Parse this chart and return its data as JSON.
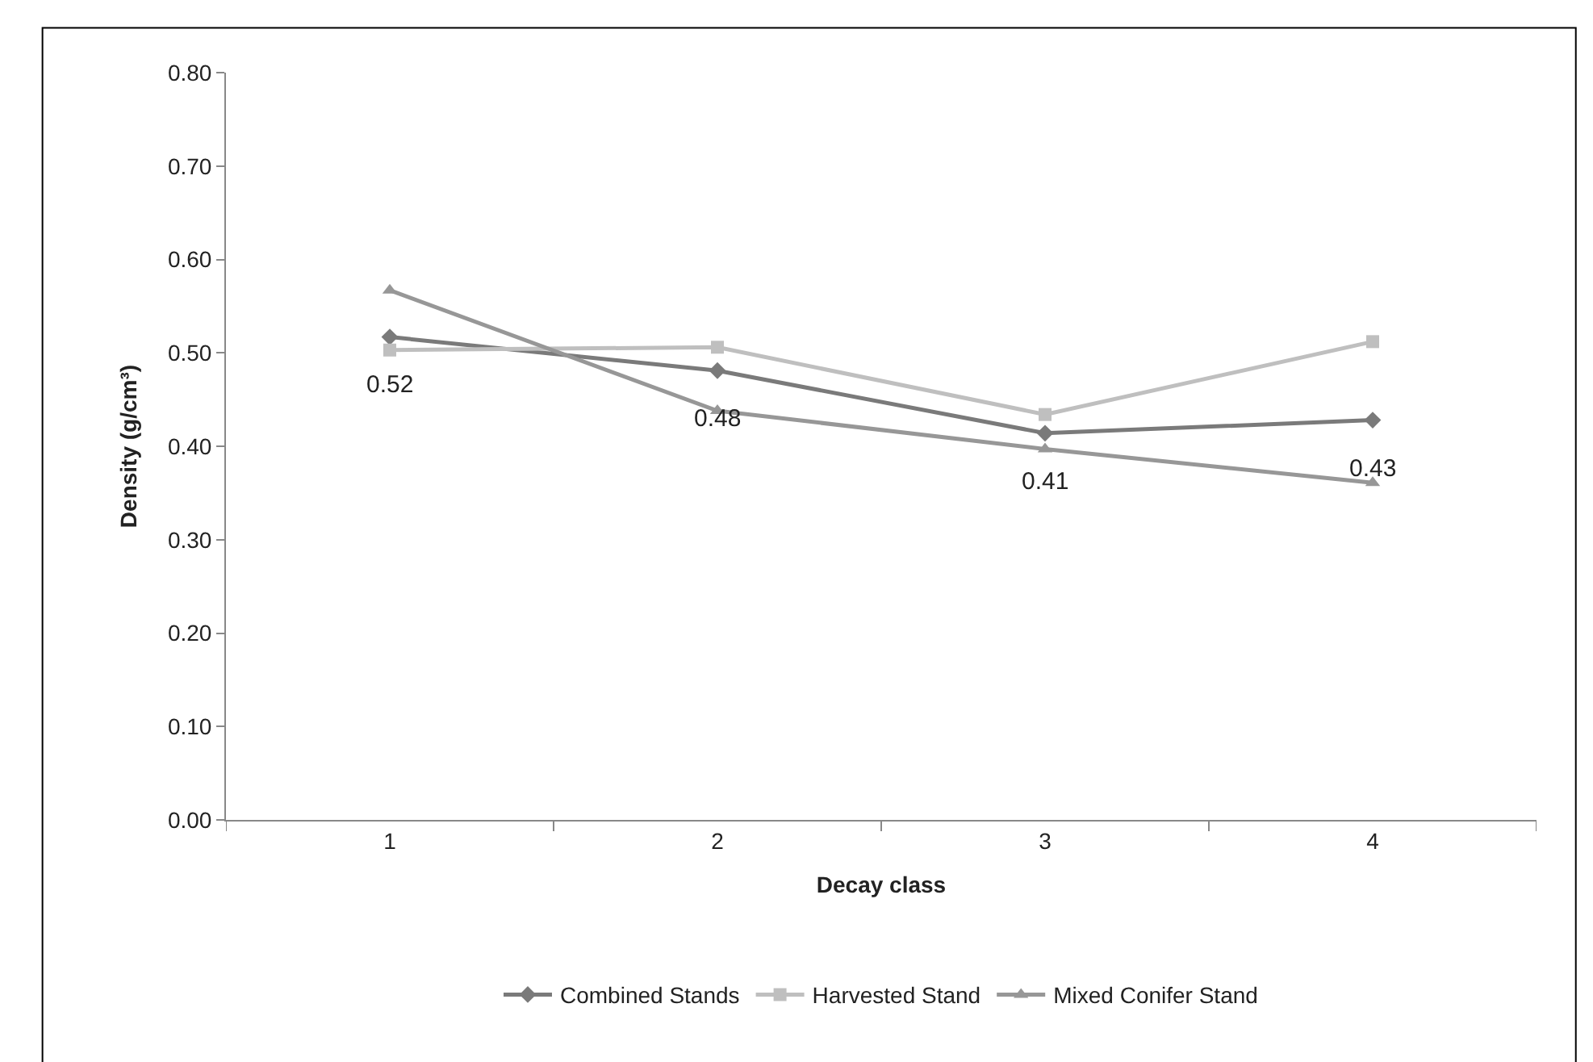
{
  "chart_data": {
    "type": "line",
    "xlabel": "Decay class",
    "ylabel": "Density (g/cm³)",
    "categories": [
      "1",
      "2",
      "3",
      "4"
    ],
    "series": [
      {
        "name": "Combined Stands",
        "color": "#7a7a7a",
        "marker": "diamond",
        "values": [
          0.517,
          0.481,
          0.414,
          0.428
        ],
        "value_labels": [
          "0.52",
          "0.48",
          "0.41",
          "0.43"
        ]
      },
      {
        "name": "Harvested Stand",
        "color": "#bfbfbf",
        "marker": "square",
        "values": [
          0.503,
          0.506,
          0.434,
          0.512
        ]
      },
      {
        "name": "Mixed Conifer Stand",
        "color": "#979797",
        "marker": "triangle",
        "values": [
          0.567,
          0.438,
          0.397,
          0.361
        ]
      }
    ],
    "ylim": [
      0,
      0.8
    ],
    "yticks": [
      {
        "value": 0,
        "label": "0.00"
      },
      {
        "value": 0.1,
        "label": "0.10"
      },
      {
        "value": 0.2,
        "label": "0.20"
      },
      {
        "value": 0.3,
        "label": "0.30"
      },
      {
        "value": 0.4,
        "label": "0.40"
      },
      {
        "value": 0.5,
        "label": "0.50"
      },
      {
        "value": 0.6,
        "label": "0.60"
      },
      {
        "value": 0.7,
        "label": "0.70"
      },
      {
        "value": 0.8,
        "label": "0.80"
      }
    ],
    "grid": false,
    "legend": "bottom",
    "line_style": "solid"
  }
}
